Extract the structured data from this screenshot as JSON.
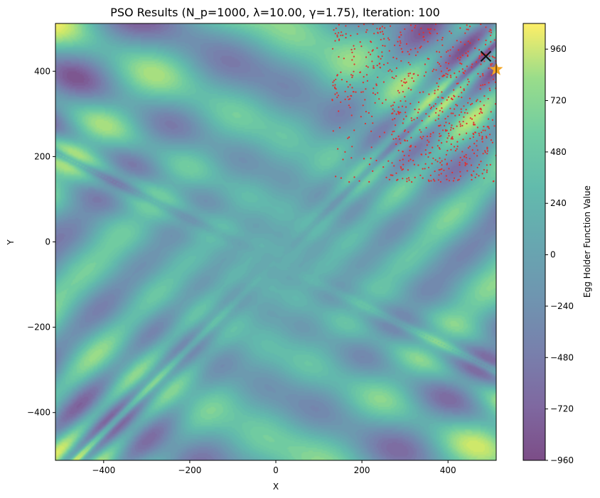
{
  "chart_data": {
    "type": "heatmap",
    "title": "PSO Results (N_p=1000, λ=10.00, γ=1.75), Iteration: 100",
    "xlabel": "X",
    "ylabel": "Y",
    "xlim": [
      -512,
      512
    ],
    "ylim": [
      -512,
      512
    ],
    "xticks": [
      -400,
      -200,
      0,
      200,
      400
    ],
    "xtick_labels": [
      "−400",
      "−200",
      "0",
      "200",
      "400"
    ],
    "yticks": [
      -400,
      -200,
      0,
      200,
      400
    ],
    "ytick_labels": [
      "−400",
      "−200",
      "0",
      "200",
      "400"
    ],
    "colorbar": {
      "label": "Egg Holder Function Value",
      "range": [
        -960,
        1080
      ],
      "ticks": [
        -960,
        -720,
        -480,
        -240,
        0,
        240,
        480,
        720,
        960
      ],
      "tick_labels": [
        "−960",
        "−720",
        "−480",
        "−240",
        "0",
        "240",
        "480",
        "720",
        "960"
      ],
      "colormap": "viridis",
      "alpha": 0.7
    },
    "function": "Egg Holder: f(x,y) = -(y+47)·sin(√|x/2+y+47|) - x·sin(√|x-(y+47)|)",
    "particles": {
      "count": 1000,
      "color": "#e03030",
      "region": {
        "x": [
          130,
          512
        ],
        "y": [
          140,
          512
        ]
      }
    },
    "best_found": {
      "x": 488,
      "y": 435,
      "marker": "x",
      "color": "#111111"
    },
    "global_optimum": {
      "x": 512,
      "y": 404.2319,
      "marker": "star",
      "color": "#f5a623"
    }
  }
}
